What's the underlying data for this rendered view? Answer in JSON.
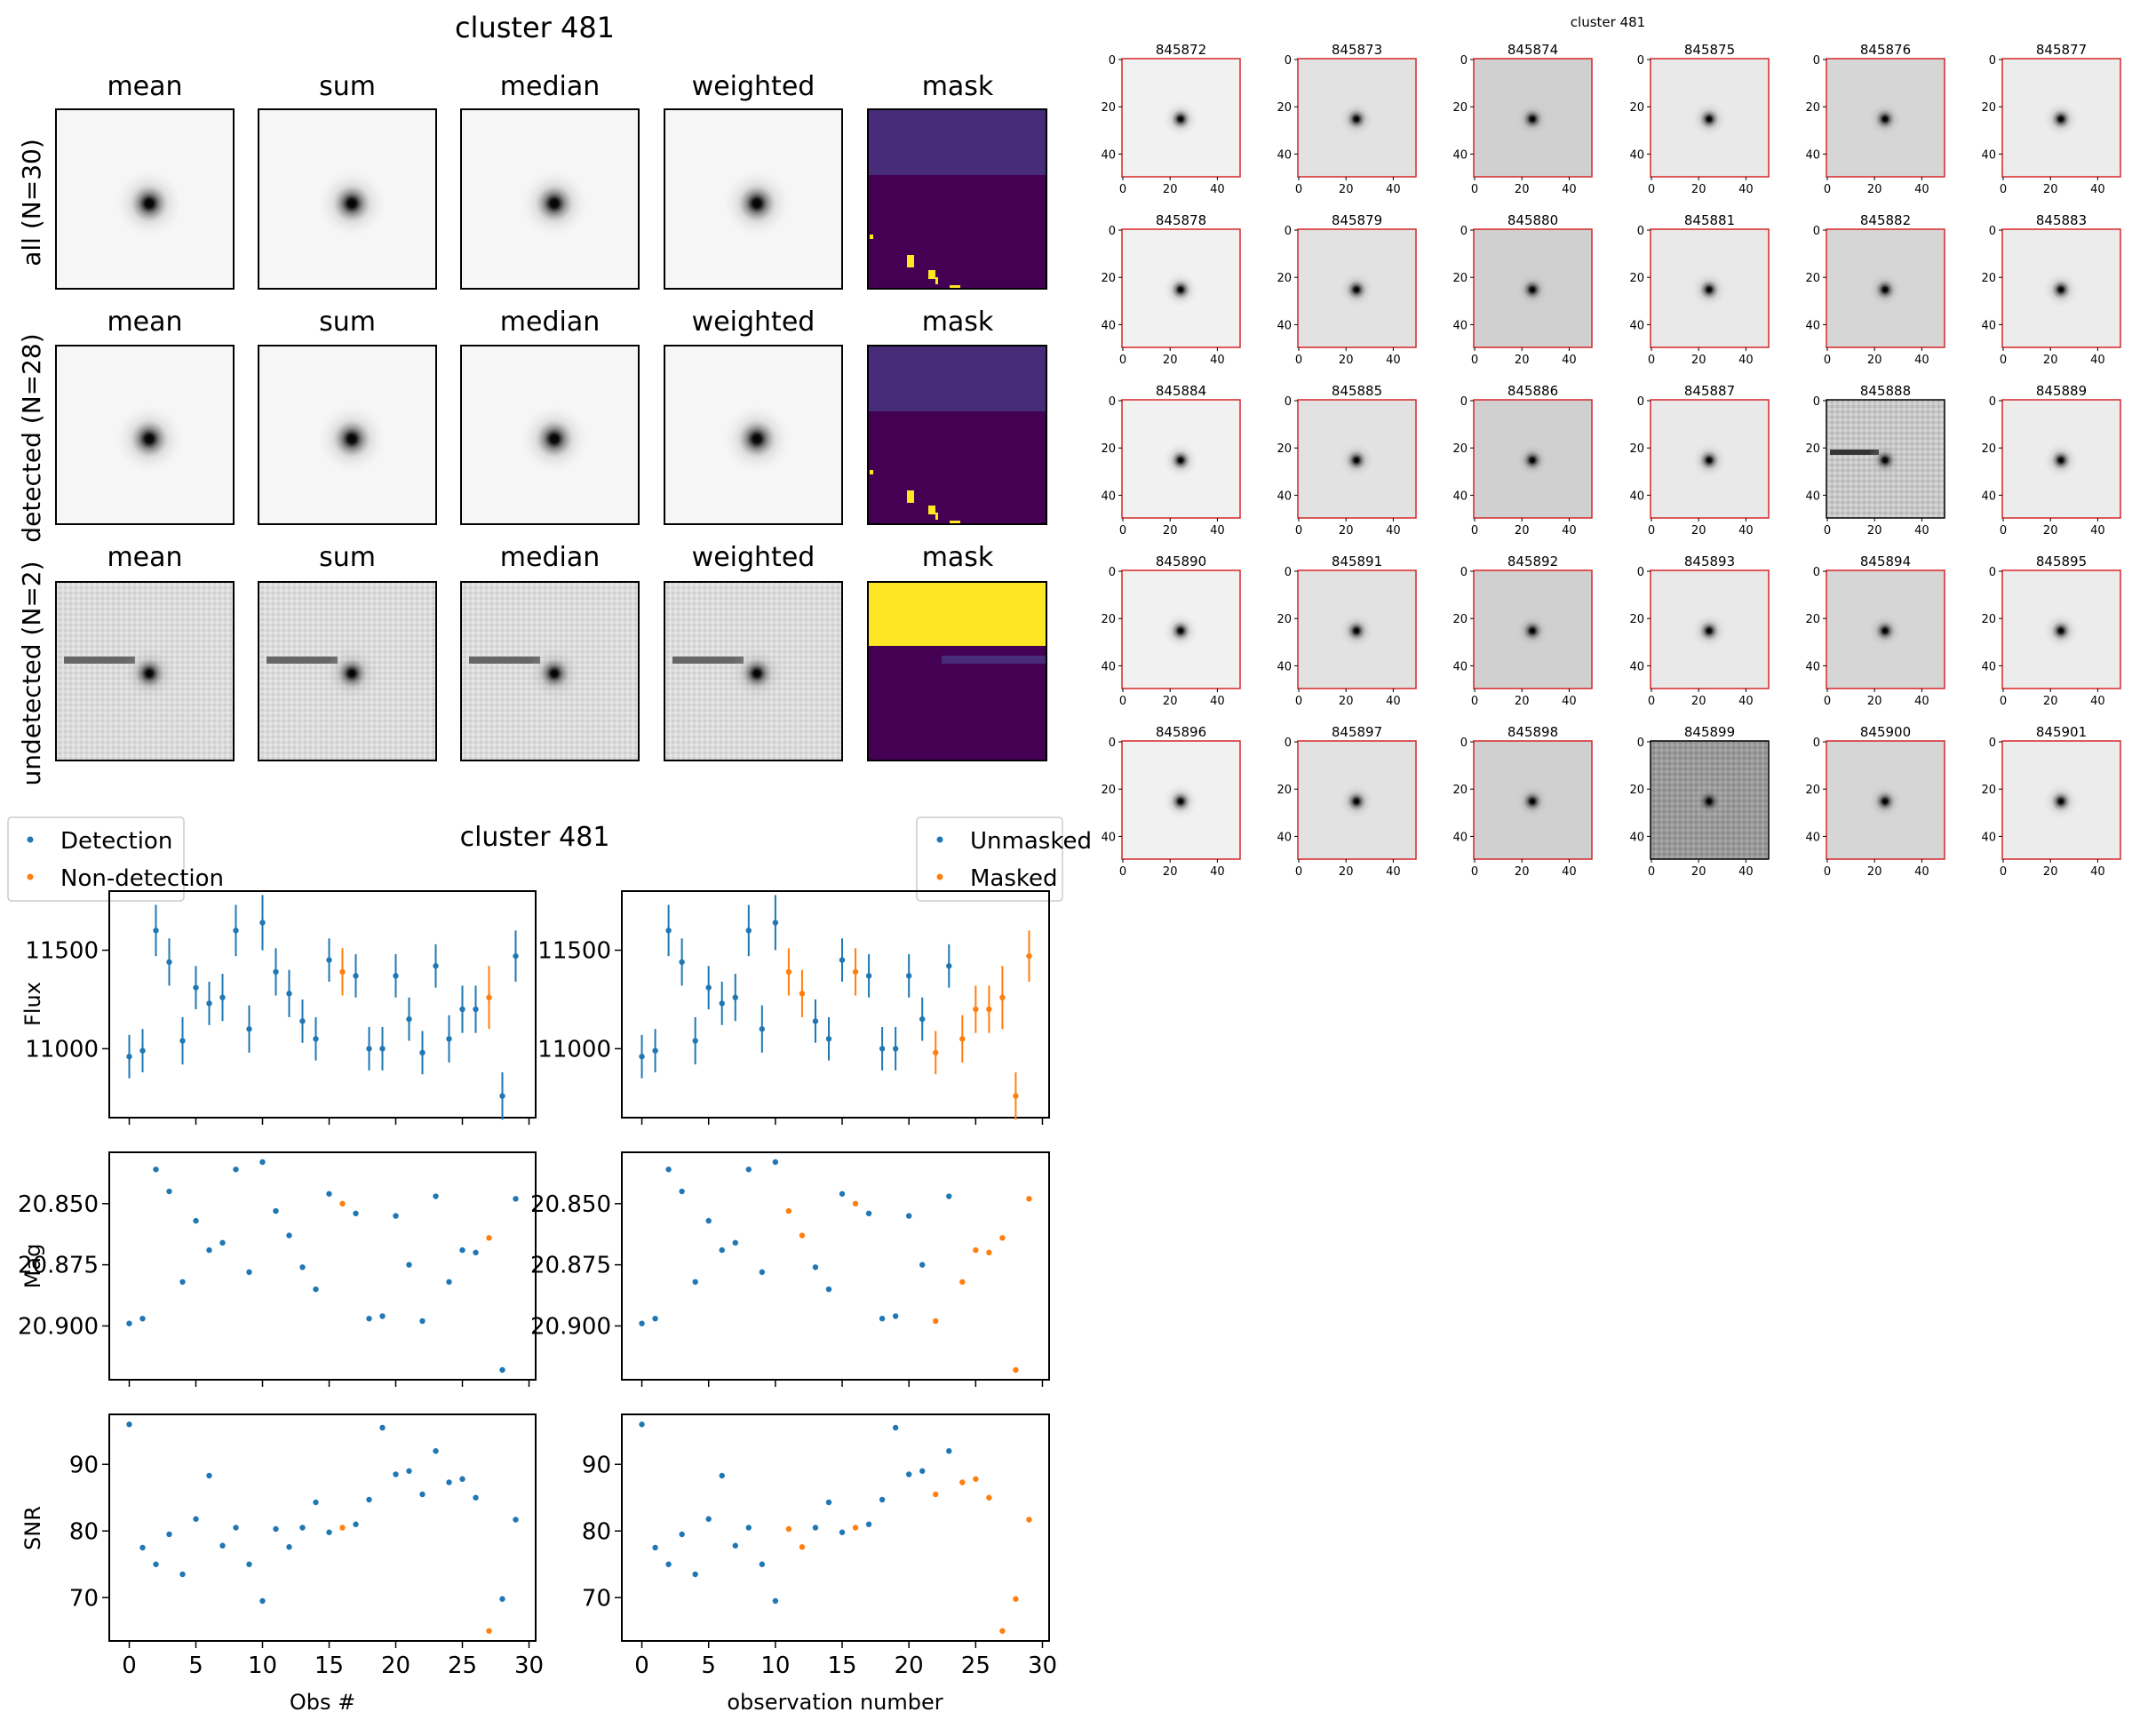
{
  "chart_data": [
    {
      "type": "image-grid",
      "title": "cluster 481",
      "column_titles": [
        "mean",
        "sum",
        "median",
        "weighted",
        "mask"
      ],
      "row_labels": [
        "all (N=30)",
        "detected (N=28)",
        "undetected (N=2)"
      ],
      "colors": {
        "mask_dark": "#440154",
        "mask_mid": "#472c7a",
        "mask_yellow": "#fde725"
      }
    },
    {
      "type": "scatter",
      "title": "cluster 481",
      "legend_left": [
        "Detection",
        "Non-detection"
      ],
      "legend_right": [
        "Unmasked",
        "Masked"
      ],
      "colors": {
        "blue": "#1f77b4",
        "orange": "#ff7f0e"
      },
      "x": [
        0,
        1,
        2,
        3,
        4,
        5,
        6,
        7,
        8,
        9,
        10,
        11,
        12,
        13,
        14,
        15,
        16,
        17,
        18,
        19,
        20,
        21,
        22,
        23,
        24,
        25,
        26,
        27,
        28,
        29
      ],
      "detected": [
        true,
        true,
        true,
        true,
        true,
        true,
        true,
        true,
        true,
        true,
        true,
        true,
        true,
        true,
        true,
        true,
        false,
        true,
        true,
        true,
        true,
        true,
        true,
        true,
        true,
        true,
        true,
        false,
        true,
        true
      ],
      "masked": [
        false,
        false,
        false,
        false,
        false,
        false,
        false,
        false,
        false,
        false,
        false,
        true,
        true,
        false,
        false,
        false,
        true,
        false,
        false,
        false,
        false,
        false,
        true,
        false,
        true,
        true,
        true,
        true,
        true,
        true
      ],
      "flux": [
        10960,
        10990,
        11600,
        11440,
        11040,
        11310,
        11230,
        11260,
        11600,
        11100,
        11640,
        11390,
        11280,
        11140,
        11050,
        11450,
        11390,
        11370,
        11000,
        11000,
        11370,
        11150,
        10980,
        11420,
        11050,
        11200,
        11200,
        11260,
        10760,
        11470
      ],
      "flux_err": [
        110,
        110,
        130,
        120,
        120,
        110,
        110,
        120,
        130,
        120,
        140,
        120,
        120,
        110,
        110,
        110,
        120,
        110,
        110,
        110,
        110,
        110,
        110,
        110,
        120,
        120,
        120,
        160,
        120,
        130
      ],
      "mag": [
        20.899,
        20.897,
        20.836,
        20.845,
        20.882,
        20.857,
        20.869,
        20.866,
        20.836,
        20.878,
        20.833,
        20.853,
        20.863,
        20.876,
        20.885,
        20.846,
        20.85,
        20.854,
        20.897,
        20.896,
        20.855,
        20.875,
        20.898,
        20.847,
        20.882,
        20.869,
        20.87,
        20.864,
        20.918,
        20.848
      ],
      "snr": [
        96,
        77.5,
        75,
        79.5,
        73.5,
        81.8,
        88.3,
        77.8,
        80.5,
        75,
        69.5,
        80.3,
        77.6,
        80.5,
        84.3,
        79.8,
        80.5,
        81,
        84.7,
        95.5,
        88.5,
        89,
        85.5,
        92,
        87.3,
        87.8,
        85,
        65,
        69.8,
        81.7
      ],
      "panels": [
        {
          "ylabel": "Flux",
          "ylim": [
            10650,
            11800
          ],
          "yticks": [
            "11000",
            "11500"
          ],
          "ytick_values": [
            11000,
            11500
          ]
        },
        {
          "ylabel": "Mag",
          "ylim": [
            20.922,
            20.829
          ],
          "yticks": [
            "20.850",
            "20.875",
            "20.900"
          ],
          "ytick_values": [
            20.85,
            20.875,
            20.9
          ]
        },
        {
          "ylabel": "SNR",
          "ylim": [
            63.5,
            97.5
          ],
          "yticks": [
            "70",
            "80",
            "90"
          ],
          "ytick_values": [
            70,
            80,
            90
          ]
        }
      ],
      "xlabel_left": "Obs #",
      "xlabel_right": "observation number",
      "xticks": [
        "0",
        "5",
        "10",
        "15",
        "20",
        "25",
        "30"
      ],
      "xtick_values": [
        0,
        5,
        10,
        15,
        20,
        25,
        30
      ],
      "xlim": [
        -1.5,
        30.5
      ]
    },
    {
      "type": "image-grid",
      "title": "cluster 481",
      "stamps": [
        "845872",
        "845873",
        "845874",
        "845875",
        "845876",
        "845877",
        "845878",
        "845879",
        "845880",
        "845881",
        "845882",
        "845883",
        "845884",
        "845885",
        "845886",
        "845887",
        "845888",
        "845889",
        "845890",
        "845891",
        "845892",
        "845893",
        "845894",
        "845895",
        "845896",
        "845897",
        "845898",
        "845899",
        "845900",
        "845901"
      ],
      "ticks": [
        "0",
        "20",
        "40"
      ],
      "tick_values": [
        0,
        20,
        40
      ],
      "frame_color": "#d62728",
      "special_frame_stamps": [
        "845888",
        "845899"
      ],
      "special_frame_color": "#000000"
    }
  ]
}
